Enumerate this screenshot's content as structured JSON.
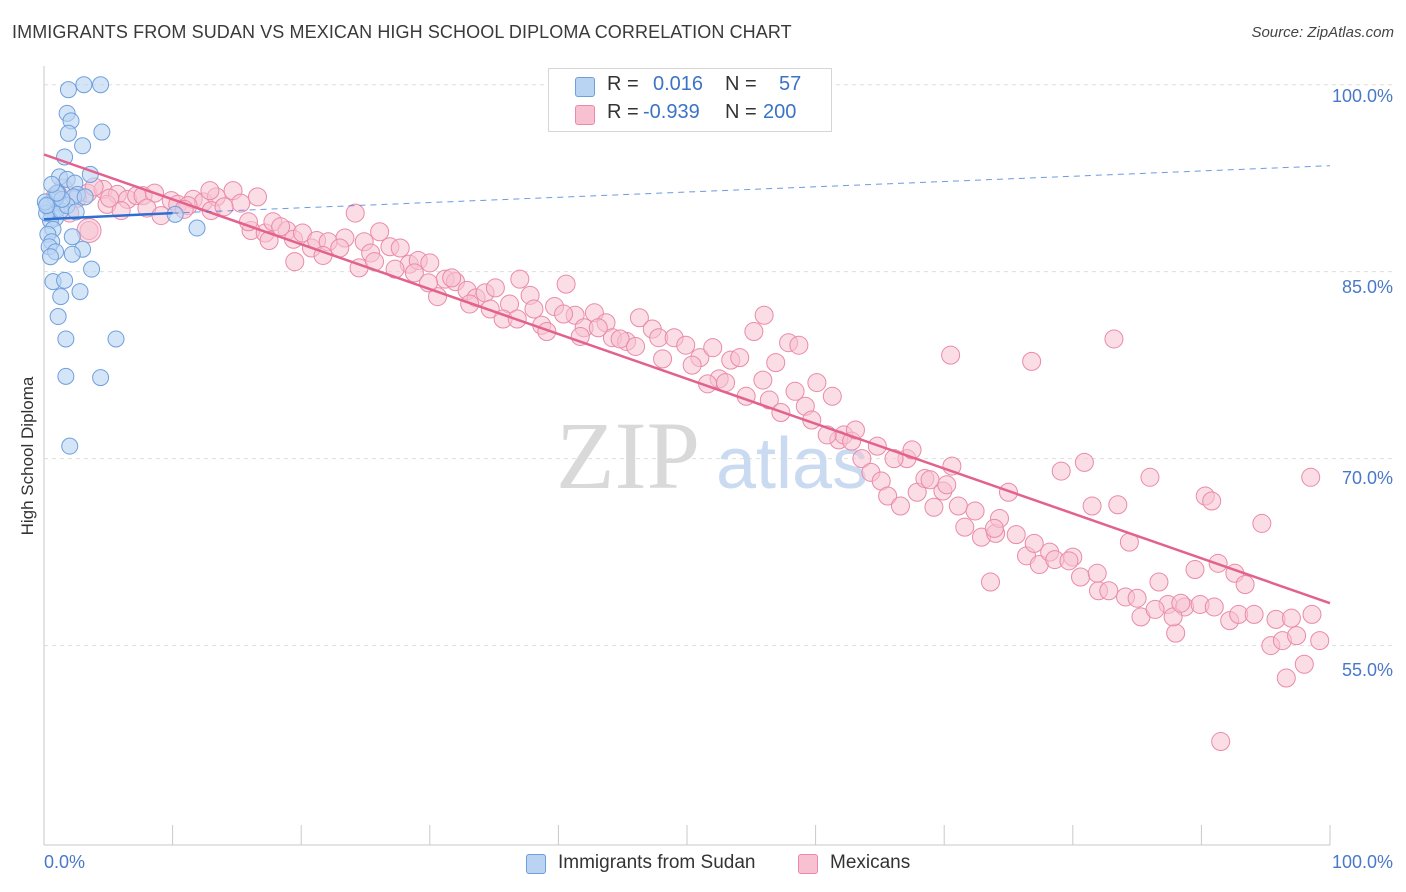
{
  "title": "IMMIGRANTS FROM SUDAN VS MEXICAN HIGH SCHOOL DIPLOMA CORRELATION CHART",
  "source": "Source: ZipAtlas.com",
  "watermark": {
    "zip": "ZIP",
    "atlas": "atlas"
  },
  "stats": {
    "r_label": "R =",
    "n_label": "N =",
    "rows": [
      {
        "r": "0.016",
        "n": "57"
      },
      {
        "r": "-0.939",
        "n": "200"
      }
    ]
  },
  "legend": {
    "series1": "Immigrants from Sudan",
    "series2": "Mexicans"
  },
  "chart_data": {
    "type": "scatter",
    "title": "IMMIGRANTS FROM SUDAN VS MEXICAN HIGH SCHOOL DIPLOMA CORRELATION CHART",
    "ylabel": "High School Diploma",
    "xlabel": "",
    "xlim": [
      0,
      100
    ],
    "ylim": [
      39,
      101.5
    ],
    "x_tick_labels": [
      "0.0%",
      "100.0%"
    ],
    "y_ticks": [
      100,
      85,
      70,
      55
    ],
    "y_tick_labels": [
      "100.0%",
      "85.0%",
      "70.0%",
      "55.0%"
    ],
    "colors": {
      "series1_fill": "#b9d3f3",
      "series1_stroke": "#6f9fdc",
      "series1_line": "#2f6fd0",
      "series2_fill": "#f8c1d2",
      "series2_stroke": "#ea8aa9",
      "series2_line": "#e2628d",
      "axis": "#c9c9c9",
      "grid": "#dedede",
      "tick_text": "#4a78c8"
    },
    "series": [
      {
        "name": "Immigrants from Sudan",
        "trend": {
          "x": [
            0,
            10
          ],
          "y": [
            89.2,
            89.7
          ],
          "dashed_x": [
            10,
            100
          ],
          "dashed_y": [
            89.7,
            93.5
          ]
        },
        "points": [
          [
            3.1,
            100
          ],
          [
            4.4,
            100
          ],
          [
            1.9,
            99.6
          ],
          [
            1.8,
            97.7
          ],
          [
            2.1,
            97.1
          ],
          [
            1.9,
            96.1
          ],
          [
            4.5,
            96.2
          ],
          [
            3.0,
            95.1
          ],
          [
            1.6,
            94.2
          ],
          [
            1.2,
            92.6
          ],
          [
            1.8,
            92.4
          ],
          [
            3.6,
            92.8
          ],
          [
            2.4,
            92.1
          ],
          [
            2.6,
            91.2
          ],
          [
            1.1,
            91.3
          ],
          [
            0.8,
            90.6
          ],
          [
            1.3,
            90.3
          ],
          [
            2.3,
            91.0
          ],
          [
            0.4,
            90.1
          ],
          [
            0.6,
            89.6
          ],
          [
            0.9,
            89.3
          ],
          [
            0.3,
            90.4
          ],
          [
            1.0,
            90.0
          ],
          [
            0.5,
            89.1
          ],
          [
            0.2,
            89.7
          ],
          [
            0.7,
            88.4
          ],
          [
            1.3,
            89.9
          ],
          [
            1.8,
            90.3
          ],
          [
            0.9,
            90.9
          ],
          [
            0.1,
            90.6
          ],
          [
            10.2,
            89.6
          ],
          [
            11.9,
            88.5
          ],
          [
            0.3,
            88.0
          ],
          [
            0.6,
            87.4
          ],
          [
            2.2,
            87.8
          ],
          [
            0.4,
            87.0
          ],
          [
            3.0,
            86.8
          ],
          [
            0.9,
            86.6
          ],
          [
            2.2,
            86.4
          ],
          [
            0.5,
            86.2
          ],
          [
            3.7,
            85.2
          ],
          [
            0.7,
            84.2
          ],
          [
            1.6,
            84.3
          ],
          [
            2.8,
            83.4
          ],
          [
            1.3,
            83.0
          ],
          [
            1.1,
            81.4
          ],
          [
            1.7,
            79.6
          ],
          [
            5.6,
            79.6
          ],
          [
            1.7,
            76.6
          ],
          [
            4.4,
            76.5
          ],
          [
            2.0,
            71.0
          ],
          [
            1.4,
            90.8
          ],
          [
            2.5,
            89.8
          ],
          [
            0.2,
            90.3
          ],
          [
            1.0,
            91.3
          ],
          [
            3.2,
            91.0
          ],
          [
            0.6,
            92.0
          ]
        ]
      },
      {
        "name": "Mexicans",
        "trend": {
          "x": [
            0,
            100
          ],
          "y": [
            94.4,
            58.4
          ]
        },
        "points": [
          [
            3.5,
            88.3
          ],
          [
            0.9,
            91.1
          ],
          [
            1.5,
            91.7
          ],
          [
            2.6,
            90.9
          ],
          [
            3.4,
            91.3
          ],
          [
            4.6,
            91.6
          ],
          [
            5.7,
            91.2
          ],
          [
            6.5,
            90.8
          ],
          [
            7.2,
            91.1
          ],
          [
            7.7,
            91.1
          ],
          [
            8.6,
            91.3
          ],
          [
            9.9,
            90.7
          ],
          [
            10.4,
            90.4
          ],
          [
            11.6,
            90.8
          ],
          [
            12.4,
            90.6
          ],
          [
            13.4,
            91.0
          ],
          [
            14.7,
            91.5
          ],
          [
            15.3,
            90.5
          ],
          [
            16.1,
            88.3
          ],
          [
            17.2,
            88.1
          ],
          [
            17.8,
            89.0
          ],
          [
            18.9,
            88.3
          ],
          [
            19.4,
            87.6
          ],
          [
            20.1,
            88.1
          ],
          [
            20.8,
            86.9
          ],
          [
            21.2,
            87.5
          ],
          [
            22.1,
            87.4
          ],
          [
            23.4,
            87.7
          ],
          [
            24.2,
            89.7
          ],
          [
            24.9,
            87.4
          ],
          [
            25.4,
            86.5
          ],
          [
            26.1,
            88.2
          ],
          [
            26.9,
            87.0
          ],
          [
            27.7,
            86.9
          ],
          [
            28.4,
            85.6
          ],
          [
            29.1,
            85.9
          ],
          [
            30.0,
            85.7
          ],
          [
            31.2,
            84.4
          ],
          [
            32.0,
            84.2
          ],
          [
            32.9,
            83.5
          ],
          [
            33.6,
            82.9
          ],
          [
            34.3,
            83.3
          ],
          [
            35.1,
            83.7
          ],
          [
            36.2,
            82.4
          ],
          [
            37.0,
            84.4
          ],
          [
            37.8,
            83.1
          ],
          [
            38.7,
            80.7
          ],
          [
            39.7,
            82.2
          ],
          [
            40.6,
            84.0
          ],
          [
            41.3,
            81.5
          ],
          [
            42.0,
            80.5
          ],
          [
            42.8,
            81.7
          ],
          [
            43.7,
            80.9
          ],
          [
            44.2,
            79.7
          ],
          [
            45.3,
            79.4
          ],
          [
            46.3,
            81.3
          ],
          [
            47.3,
            80.4
          ],
          [
            47.8,
            79.7
          ],
          [
            49.0,
            79.7
          ],
          [
            49.9,
            79.1
          ],
          [
            51.0,
            78.1
          ],
          [
            52.0,
            78.9
          ],
          [
            52.5,
            76.4
          ],
          [
            53.4,
            77.9
          ],
          [
            54.1,
            78.1
          ],
          [
            55.2,
            80.2
          ],
          [
            55.9,
            76.3
          ],
          [
            56.9,
            77.7
          ],
          [
            57.9,
            79.3
          ],
          [
            58.7,
            79.1
          ],
          [
            59.2,
            74.2
          ],
          [
            60.1,
            76.1
          ],
          [
            61.3,
            75.0
          ],
          [
            61.8,
            71.5
          ],
          [
            62.2,
            71.9
          ],
          [
            63.6,
            70.0
          ],
          [
            64.3,
            68.9
          ],
          [
            65.1,
            68.2
          ],
          [
            65.6,
            67.0
          ],
          [
            66.6,
            66.2
          ],
          [
            67.1,
            70.0
          ],
          [
            67.9,
            67.3
          ],
          [
            68.5,
            68.4
          ],
          [
            69.2,
            66.1
          ],
          [
            69.9,
            67.4
          ],
          [
            70.6,
            69.4
          ],
          [
            71.6,
            64.5
          ],
          [
            72.9,
            63.7
          ],
          [
            74.0,
            64.0
          ],
          [
            74.3,
            65.2
          ],
          [
            75.0,
            67.3
          ],
          [
            76.4,
            62.2
          ],
          [
            77.4,
            61.5
          ],
          [
            78.2,
            62.5
          ],
          [
            79.1,
            69.0
          ],
          [
            80.0,
            62.1
          ],
          [
            80.9,
            69.7
          ],
          [
            81.5,
            66.2
          ],
          [
            82.0,
            59.4
          ],
          [
            83.5,
            66.3
          ],
          [
            84.4,
            63.3
          ],
          [
            85.3,
            57.3
          ],
          [
            86.0,
            68.5
          ],
          [
            86.7,
            60.1
          ],
          [
            87.4,
            58.3
          ],
          [
            88.0,
            56.0
          ],
          [
            88.7,
            58.1
          ],
          [
            89.5,
            61.1
          ],
          [
            90.3,
            67.0
          ],
          [
            90.8,
            66.6
          ],
          [
            91.3,
            61.6
          ],
          [
            92.2,
            57.0
          ],
          [
            92.6,
            60.8
          ],
          [
            93.4,
            59.9
          ],
          [
            94.7,
            64.8
          ],
          [
            95.4,
            55.0
          ],
          [
            96.3,
            55.4
          ],
          [
            97.4,
            55.8
          ],
          [
            98.6,
            57.5
          ],
          [
            99.2,
            55.4
          ],
          [
            98.0,
            53.5
          ],
          [
            96.6,
            52.4
          ],
          [
            91.5,
            47.3
          ],
          [
            98.5,
            68.5
          ],
          [
            83.2,
            79.6
          ],
          [
            76.8,
            77.8
          ],
          [
            73.6,
            60.1
          ],
          [
            70.5,
            78.3
          ],
          [
            56.0,
            81.5
          ],
          [
            40.4,
            81.6
          ],
          [
            30.6,
            83.0
          ],
          [
            19.5,
            85.8
          ],
          [
            2.0,
            89.7
          ],
          [
            4.9,
            90.4
          ],
          [
            6.0,
            89.9
          ],
          [
            8.0,
            90.1
          ],
          [
            9.1,
            89.5
          ],
          [
            11.2,
            90.3
          ],
          [
            13.0,
            89.9
          ],
          [
            14.0,
            90.2
          ],
          [
            15.9,
            89.0
          ],
          [
            17.5,
            87.5
          ],
          [
            18.4,
            88.6
          ],
          [
            21.7,
            86.3
          ],
          [
            23.0,
            86.9
          ],
          [
            24.5,
            85.3
          ],
          [
            25.7,
            85.8
          ],
          [
            27.3,
            85.2
          ],
          [
            28.8,
            84.9
          ],
          [
            29.9,
            84.1
          ],
          [
            31.7,
            84.5
          ],
          [
            33.1,
            82.4
          ],
          [
            34.7,
            82.0
          ],
          [
            35.7,
            81.2
          ],
          [
            36.8,
            81.2
          ],
          [
            38.1,
            82.0
          ],
          [
            39.1,
            80.2
          ],
          [
            41.7,
            79.8
          ],
          [
            43.1,
            80.5
          ],
          [
            44.8,
            79.6
          ],
          [
            46.0,
            79.0
          ],
          [
            48.1,
            78.0
          ],
          [
            50.4,
            77.5
          ],
          [
            51.6,
            76.0
          ],
          [
            53.0,
            76.1
          ],
          [
            54.6,
            75.0
          ],
          [
            56.4,
            74.7
          ],
          [
            57.3,
            73.7
          ],
          [
            58.4,
            75.4
          ],
          [
            59.7,
            73.1
          ],
          [
            60.9,
            71.9
          ],
          [
            62.8,
            71.4
          ],
          [
            63.1,
            72.3
          ],
          [
            64.8,
            71.0
          ],
          [
            66.1,
            70.0
          ],
          [
            67.5,
            70.7
          ],
          [
            68.9,
            68.3
          ],
          [
            70.2,
            67.9
          ],
          [
            71.1,
            66.2
          ],
          [
            72.4,
            65.8
          ],
          [
            73.9,
            64.4
          ],
          [
            75.6,
            63.9
          ],
          [
            77.0,
            63.2
          ],
          [
            78.6,
            61.9
          ],
          [
            79.7,
            61.8
          ],
          [
            80.6,
            60.5
          ],
          [
            81.9,
            60.8
          ],
          [
            82.8,
            59.4
          ],
          [
            84.1,
            58.9
          ],
          [
            85.0,
            58.8
          ],
          [
            86.4,
            57.9
          ],
          [
            87.8,
            57.3
          ],
          [
            88.4,
            58.4
          ],
          [
            89.9,
            58.3
          ],
          [
            91.0,
            58.1
          ],
          [
            92.9,
            57.5
          ],
          [
            94.1,
            57.5
          ],
          [
            95.8,
            57.1
          ],
          [
            97.0,
            57.2
          ],
          [
            3.9,
            91.8
          ],
          [
            5.1,
            90.9
          ],
          [
            10.9,
            90.0
          ],
          [
            12.9,
            91.5
          ],
          [
            16.6,
            91.0
          ]
        ]
      }
    ]
  }
}
